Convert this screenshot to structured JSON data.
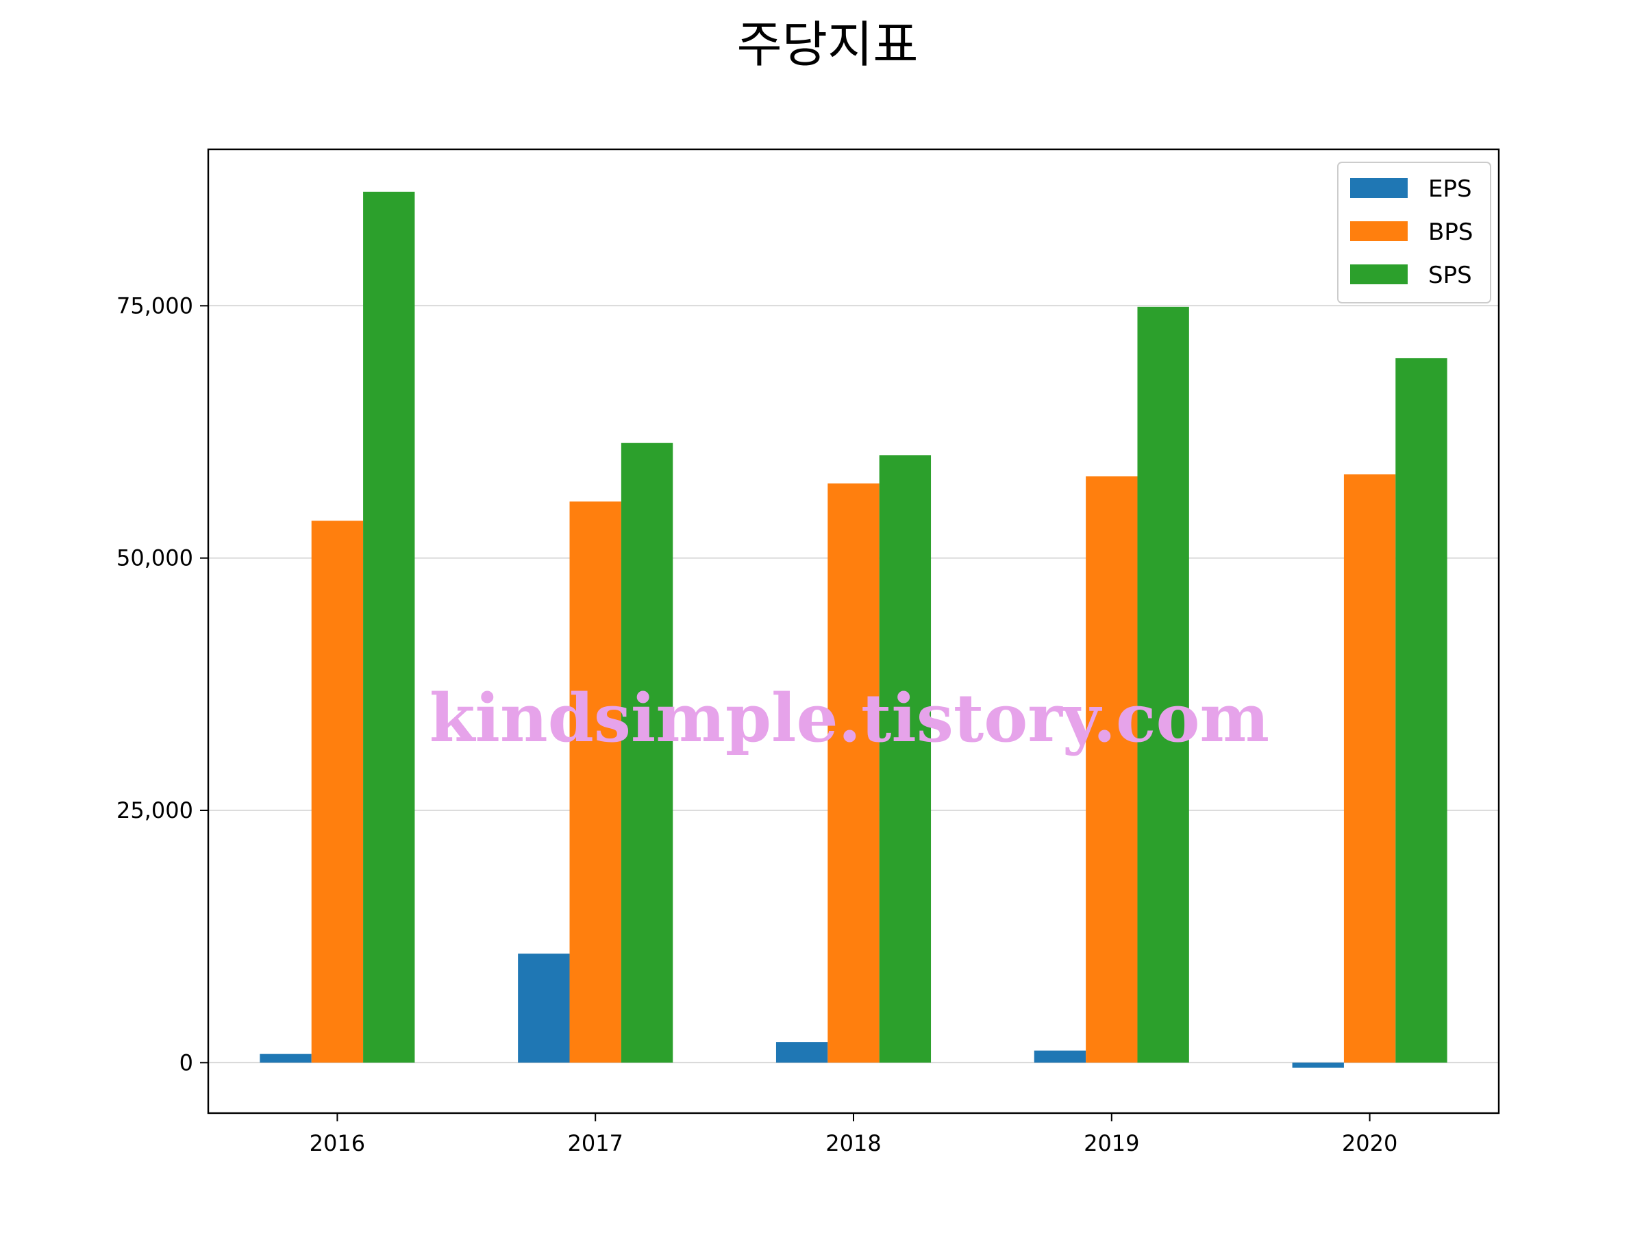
{
  "chart_data": {
    "type": "bar",
    "title": "주당지표",
    "xlabel": "",
    "ylabel": "",
    "categories": [
      "2016",
      "2017",
      "2018",
      "2019",
      "2020"
    ],
    "series": [
      {
        "name": "EPS",
        "color": "#1f77b4",
        "values": [
          860,
          10800,
          2050,
          1200,
          -500
        ]
      },
      {
        "name": "BPS",
        "color": "#ff7f0e",
        "values": [
          53700,
          55600,
          57400,
          58100,
          58300
        ]
      },
      {
        "name": "SPS",
        "color": "#2ca02c",
        "values": [
          86300,
          61400,
          60200,
          74900,
          69800
        ]
      }
    ],
    "ylim": [
      -5000,
      90500
    ],
    "yticks": [
      0,
      25000,
      50000,
      75000
    ],
    "ytick_labels": [
      "0",
      "25,000",
      "50,000",
      "75,000"
    ],
    "grid": "horizontal",
    "legend_position": "upper right"
  },
  "watermark": "kindsimple.tistory.com"
}
